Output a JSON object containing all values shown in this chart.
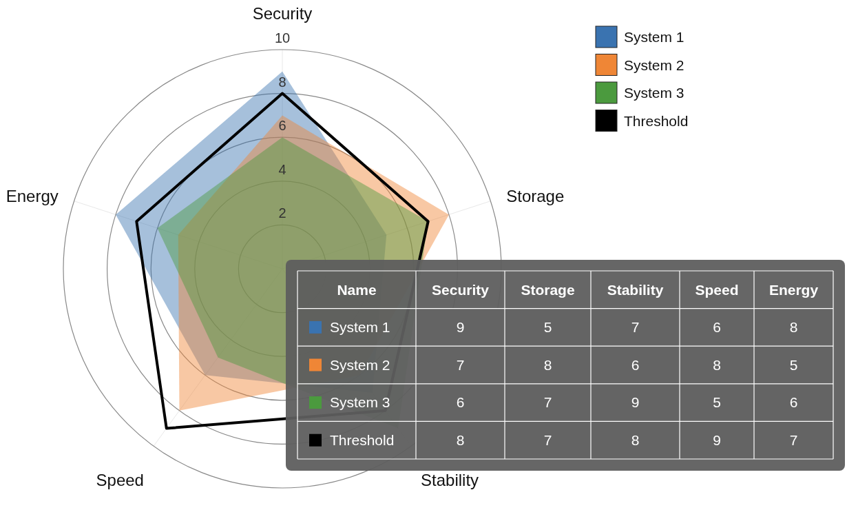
{
  "chart_data": [
    {
      "type": "radar",
      "categories": [
        "Security",
        "Storage",
        "Stability",
        "Speed",
        "Energy"
      ],
      "series": [
        {
          "name": "System 1",
          "color": "#3a73b0",
          "values": [
            9,
            5,
            7,
            6,
            8
          ]
        },
        {
          "name": "System 2",
          "color": "#ef8636",
          "values": [
            7,
            8,
            6,
            8,
            5
          ]
        },
        {
          "name": "System 3",
          "color": "#4b9a3e",
          "values": [
            6,
            7,
            9,
            5,
            6
          ]
        },
        {
          "name": "Threshold",
          "color": "#000000",
          "line_style": "solid",
          "values": [
            8,
            7,
            8,
            9,
            7
          ]
        }
      ],
      "ylim": [
        0,
        10
      ],
      "yticks": [
        2,
        4,
        6,
        8,
        10
      ],
      "grid": true,
      "legend": "top right"
    },
    {
      "type": "heatmap",
      "ylabel": "Name",
      "categories": [
        "Security",
        "Storage",
        "Stability",
        "Speed",
        "Energy"
      ],
      "y_categories": [
        "System 1",
        "System 2",
        "System 3",
        "Threshold"
      ],
      "cells": [
        [
          9,
          5,
          7,
          6,
          8
        ],
        [
          7,
          8,
          6,
          8,
          5
        ],
        [
          6,
          7,
          9,
          5,
          6
        ],
        [
          8,
          7,
          8,
          9,
          7
        ]
      ],
      "data_labels": true
    }
  ]
}
